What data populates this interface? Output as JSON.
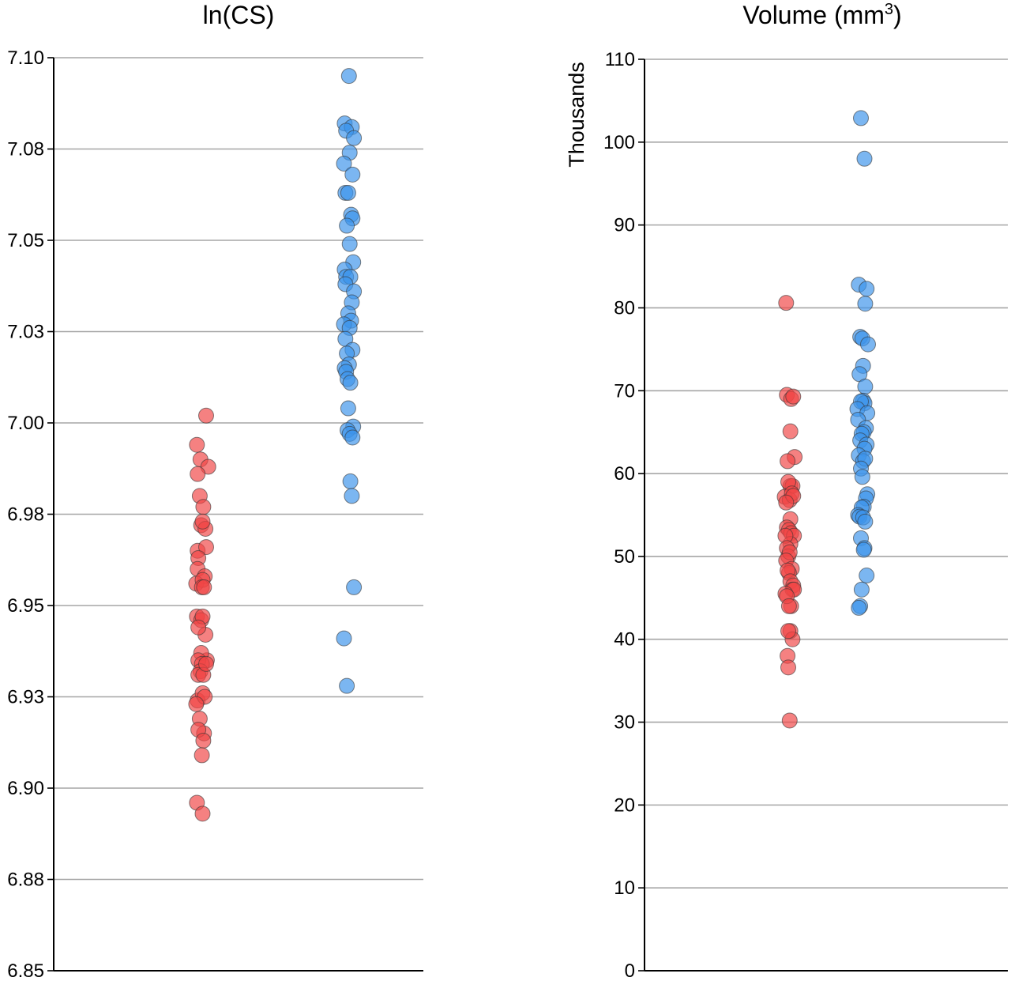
{
  "colors": {
    "group_a": "#f04545",
    "group_b": "#3d94ea",
    "gridline": "#a6a6a6",
    "axis": "#000000"
  },
  "chart_data": [
    {
      "type": "scatter",
      "title": "ln(CS)",
      "title_superscript": "",
      "title_suffix": "",
      "ylabel": "",
      "ylim": [
        6.85,
        7.1
      ],
      "yticks": [
        6.85,
        6.875,
        6.9,
        6.925,
        6.95,
        6.975,
        7.0,
        7.025,
        7.05,
        7.075,
        7.1
      ],
      "ytick_labels": [
        "6.85",
        "6.88",
        "6.90",
        "6.93",
        "6.95",
        "6.98",
        "7.00",
        "7.03",
        "7.05",
        "7.08",
        "7.10"
      ],
      "grid": true,
      "series": [
        {
          "color": "#f04545",
          "x": [
            1.1,
            0.97,
            1.02,
            1.13,
            0.98,
            1.01,
            1.06,
            1.03,
            1.09,
            1.05,
            0.98,
            1.1,
            0.99,
            0.98,
            1.08,
            0.96,
            1.05,
            1.04,
            1.07,
            0.97,
            1.03,
            1.09,
            1.05,
            0.99,
            1.11,
            1.03,
            0.99,
            1.04,
            1.02,
            0.99,
            1.06,
            1.1,
            0.98,
            1.05,
            1.08,
            0.96,
            1.01,
            1.07,
            0.99,
            1.06,
            1.04,
            0.97,
            1.05
          ],
          "y": [
            7.002,
            6.994,
            6.99,
            6.988,
            6.986,
            6.98,
            6.977,
            6.972,
            6.971,
            6.973,
            6.965,
            6.966,
            6.963,
            6.96,
            6.958,
            6.956,
            6.957,
            6.955,
            6.955,
            6.947,
            6.946,
            6.942,
            6.947,
            6.944,
            6.935,
            6.937,
            6.935,
            6.934,
            6.932,
            6.931,
            6.931,
            6.934,
            6.924,
            6.926,
            6.925,
            6.923,
            6.919,
            6.915,
            6.916,
            6.913,
            6.909,
            6.896,
            6.893
          ]
        },
        {
          "color": "#3d94ea",
          "x": [
            2.02,
            1.96,
            2.06,
            1.98,
            2.09,
            2.03,
            1.95,
            2.07,
            1.97,
            2.01,
            2.05,
            2.07,
            1.99,
            2.03,
            2.08,
            1.96,
            1.98,
            2.04,
            1.97,
            2.09,
            2.06,
            2.01,
            2.05,
            1.95,
            2.03,
            1.97,
            2.07,
            1.99,
            2.02,
            1.96,
            1.98,
            2.0,
            2.04,
            2.01,
            2.08,
            2.0,
            2.03,
            2.07,
            2.04,
            2.06,
            2.09,
            1.95,
            1.99
          ],
          "y": [
            7.095,
            7.082,
            7.081,
            7.08,
            7.078,
            7.074,
            7.071,
            7.068,
            7.063,
            7.063,
            7.057,
            7.056,
            7.054,
            7.049,
            7.044,
            7.042,
            7.04,
            7.04,
            7.038,
            7.036,
            7.033,
            7.03,
            7.028,
            7.027,
            7.026,
            7.023,
            7.02,
            7.019,
            7.016,
            7.015,
            7.014,
            7.012,
            7.011,
            7.004,
            6.999,
            6.998,
            6.997,
            6.996,
            6.984,
            6.98,
            6.955,
            6.941,
            6.928
          ]
        }
      ]
    },
    {
      "type": "scatter",
      "title": "Volume (mm",
      "title_superscript": "3",
      "title_suffix": ")",
      "ylabel": "Thousands",
      "ylim": [
        0,
        110
      ],
      "yticks": [
        0,
        10,
        20,
        30,
        40,
        50,
        60,
        70,
        80,
        90,
        100,
        110
      ],
      "ytick_labels": [
        "0",
        "10",
        "20",
        "30",
        "40",
        "50",
        "60",
        "70",
        "80",
        "90",
        "100",
        "110"
      ],
      "grid": true,
      "series": [
        {
          "color": "#f04545",
          "x": [
            0.97,
            0.98,
            1.04,
            1.07,
            1.03,
            1.09,
            0.99,
            1.03,
            1.06,
            1.0,
            0.95,
            1.02,
            1.05,
            1.07,
            0.97,
            1.03,
            0.98,
            1.01,
            1.04,
            1.08,
            1.03,
            0.96,
            0.98,
            1.0,
            1.02,
            0.97,
            1.05,
            1.01,
            0.99,
            1.03,
            1.07,
            1.06,
            1.08,
            0.96,
            1.04,
            0.98,
            1.01,
            1.03,
            1.06,
            0.99,
            1.0,
            1.02,
            1.0
          ],
          "y": [
            80.6,
            69.5,
            69.0,
            69.3,
            65.1,
            62.0,
            61.5,
            58.5,
            58.5,
            59.0,
            57.2,
            56.8,
            57.6,
            57.3,
            56.5,
            54.5,
            53.5,
            53.2,
            52.8,
            52.5,
            51.5,
            52.5,
            51.0,
            50.0,
            50.5,
            49.5,
            48.5,
            48.0,
            48.3,
            47.0,
            46.5,
            46.0,
            46.0,
            45.5,
            44.0,
            45.2,
            44.0,
            41.0,
            40.0,
            38.0,
            36.6,
            30.2,
            41.0
          ]
        },
        {
          "color": "#3d94ea",
          "x": [
            1.0,
            1.05,
            0.97,
            1.08,
            1.06,
            0.99,
            1.02,
            1.1,
            1.03,
            0.98,
            1.06,
            1.03,
            1.05,
            1.0,
            0.95,
            1.09,
            0.96,
            1.07,
            1.04,
            1.01,
            0.99,
            1.08,
            1.05,
            0.97,
            1.03,
            1.06,
            1.0,
            1.02,
            1.09,
            1.07,
            1.04,
            1.01,
            0.96,
            0.98,
            1.03,
            1.06,
            1.0,
            1.05,
            1.04,
            1.08,
            0.99,
            0.97,
            1.01
          ],
          "y": [
            102.9,
            98.0,
            82.8,
            82.3,
            80.5,
            76.5,
            76.3,
            75.6,
            73.0,
            72.0,
            70.5,
            68.8,
            68.5,
            68.7,
            67.8,
            67.3,
            66.5,
            65.5,
            65.0,
            64.8,
            64.0,
            63.5,
            63.0,
            62.2,
            61.5,
            61.8,
            60.6,
            59.6,
            57.5,
            57.0,
            56.0,
            55.9,
            55.0,
            54.8,
            54.7,
            54.2,
            52.2,
            51.0,
            50.8,
            47.7,
            44.0,
            43.8,
            46.0
          ]
        }
      ]
    }
  ]
}
